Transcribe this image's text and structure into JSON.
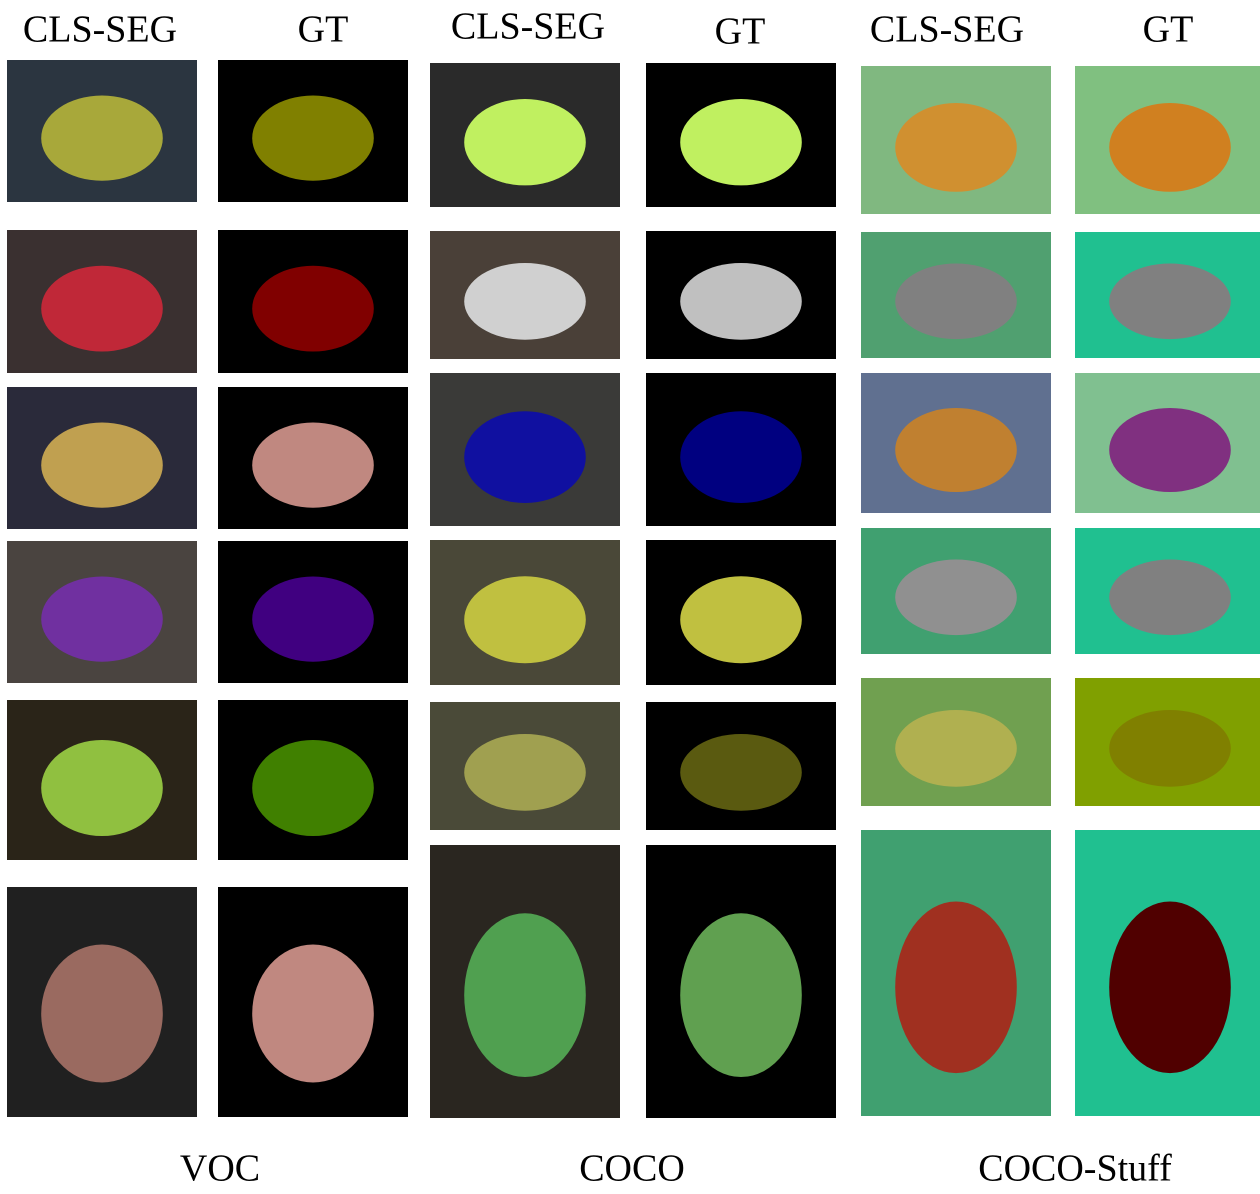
{
  "groups": [
    {
      "label": "VOC",
      "columns": [
        "CLS-SEG",
        "GT"
      ]
    },
    {
      "label": "COCO",
      "columns": [
        "CLS-SEG",
        "GT"
      ]
    },
    {
      "label": "COCO-Stuff",
      "columns": [
        "CLS-SEG",
        "GT"
      ]
    }
  ]
}
